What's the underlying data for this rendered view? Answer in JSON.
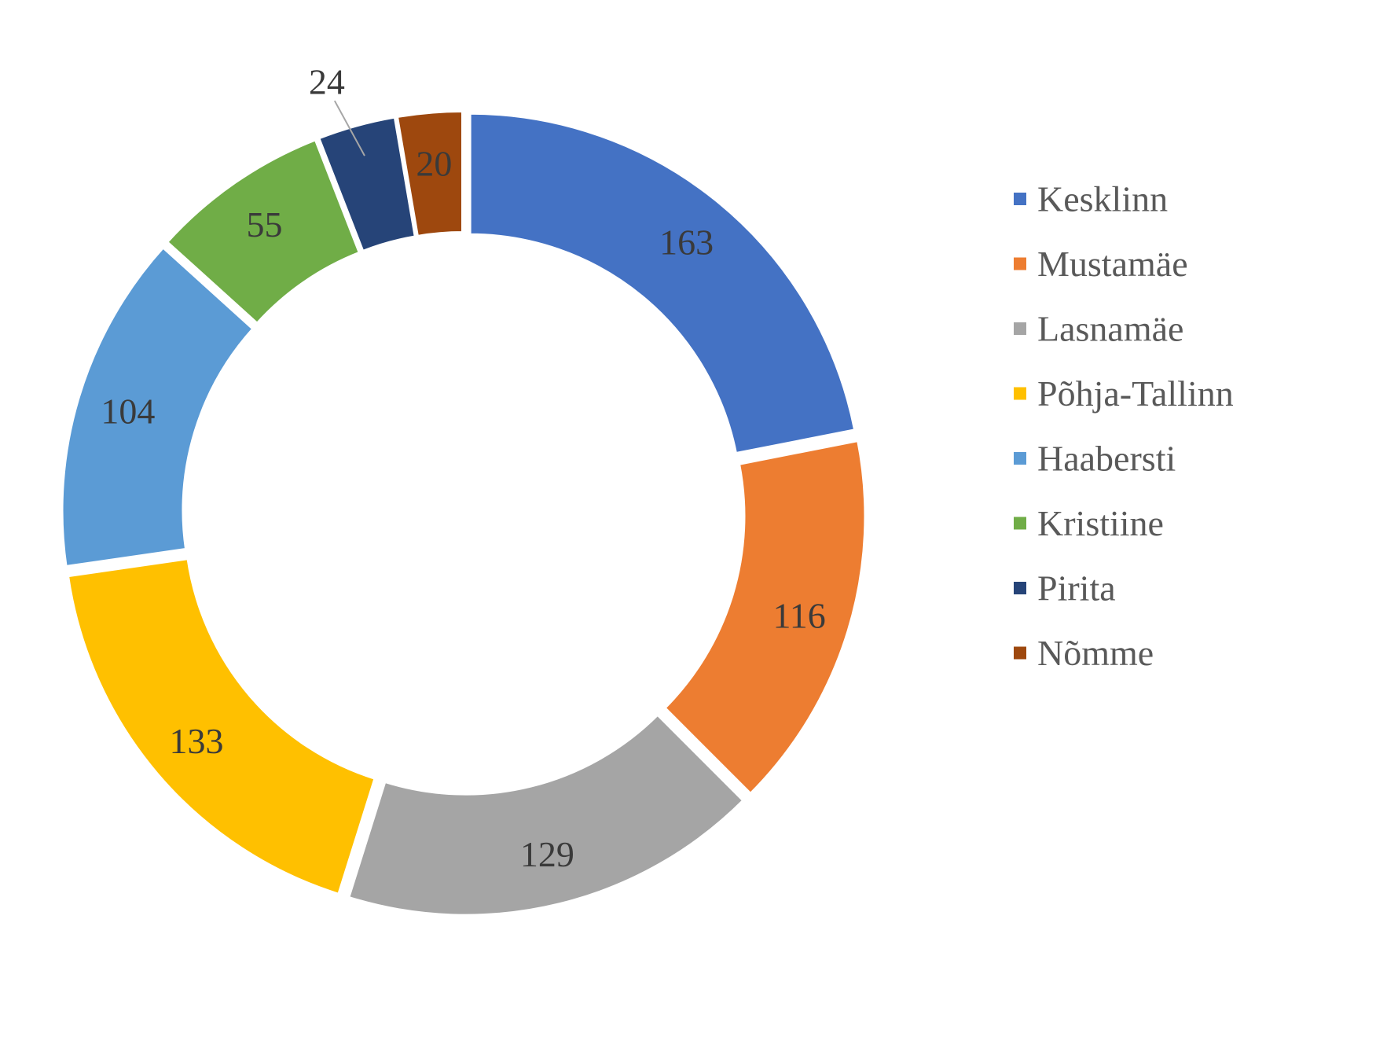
{
  "chart_data": {
    "type": "pie",
    "variant": "donut",
    "title": "",
    "legend_position": "right",
    "categories": [
      "Kesklinn",
      "Mustamäe",
      "Lasnamäe",
      "Põhja-Tallinn",
      "Haabersti",
      "Kristiine",
      "Pirita",
      "Nõmme"
    ],
    "values": [
      163,
      116,
      129,
      133,
      104,
      55,
      24,
      20
    ],
    "colors": [
      "#4472C4",
      "#ED7D31",
      "#A5A5A5",
      "#FFC000",
      "#5B9BD5",
      "#70AD47",
      "#264478",
      "#9E480E"
    ],
    "data_labels": [
      "163",
      "116",
      "129",
      "133",
      "104",
      "55",
      "24",
      "20"
    ]
  }
}
